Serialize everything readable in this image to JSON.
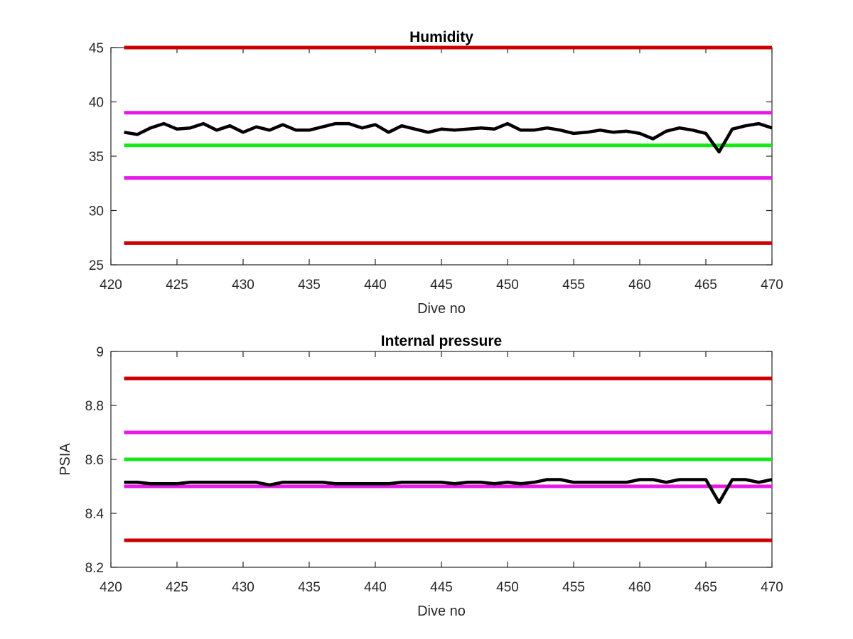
{
  "chart_data": [
    {
      "type": "line",
      "title": "Humidity",
      "xlabel": "Dive no",
      "ylabel": "",
      "xlim": [
        420,
        470
      ],
      "ylim": [
        25,
        45
      ],
      "xticks": [
        420,
        425,
        430,
        435,
        440,
        445,
        450,
        455,
        460,
        465,
        470
      ],
      "yticks": [
        25,
        30,
        35,
        40,
        45
      ],
      "grid": false,
      "thresholds": [
        {
          "value": 45,
          "x": [
            421,
            470
          ],
          "color": "#cc0000"
        },
        {
          "value": 39,
          "x": [
            421,
            470
          ],
          "color": "#e619e6"
        },
        {
          "value": 36,
          "x": [
            421,
            470
          ],
          "color": "#19e619"
        },
        {
          "value": 33,
          "x": [
            421,
            470
          ],
          "color": "#e619e6"
        },
        {
          "value": 27,
          "x": [
            421,
            470
          ],
          "color": "#cc0000"
        }
      ],
      "series": [
        {
          "color": "#000000",
          "x": [
            421,
            422,
            423,
            424,
            425,
            426,
            427,
            428,
            429,
            430,
            431,
            432,
            433,
            434,
            435,
            436,
            437,
            438,
            439,
            440,
            441,
            442,
            443,
            444,
            445,
            446,
            447,
            448,
            449,
            450,
            451,
            452,
            453,
            454,
            455,
            456,
            457,
            458,
            459,
            460,
            461,
            462,
            463,
            464,
            465,
            466,
            467,
            468,
            469,
            470
          ],
          "y": [
            37.2,
            37.0,
            37.6,
            38.0,
            37.5,
            37.6,
            38.0,
            37.4,
            37.8,
            37.2,
            37.7,
            37.4,
            37.9,
            37.4,
            37.4,
            37.7,
            38.0,
            38.0,
            37.6,
            37.9,
            37.2,
            37.8,
            37.5,
            37.2,
            37.5,
            37.4,
            37.5,
            37.6,
            37.5,
            38.0,
            37.4,
            37.4,
            37.6,
            37.4,
            37.1,
            37.2,
            37.4,
            37.2,
            37.3,
            37.1,
            36.6,
            37.3,
            37.6,
            37.4,
            37.1,
            35.4,
            37.5,
            37.8,
            38.0,
            37.6
          ]
        }
      ]
    },
    {
      "type": "line",
      "title": "Internal pressure",
      "xlabel": "Dive no",
      "ylabel": "PSIA",
      "xlim": [
        420,
        470
      ],
      "ylim": [
        8.2,
        9
      ],
      "xticks": [
        420,
        425,
        430,
        435,
        440,
        445,
        450,
        455,
        460,
        465,
        470
      ],
      "yticks": [
        8.2,
        8.4,
        8.6,
        8.8,
        9
      ],
      "ytick_labels": [
        "8.2",
        "8.4",
        "8.6",
        "8.8",
        "9"
      ],
      "grid": false,
      "thresholds": [
        {
          "value": 8.9,
          "x": [
            421,
            470
          ],
          "color": "#cc0000"
        },
        {
          "value": 8.7,
          "x": [
            421,
            470
          ],
          "color": "#e619e6"
        },
        {
          "value": 8.6,
          "x": [
            421,
            470
          ],
          "color": "#19e619"
        },
        {
          "value": 8.5,
          "x": [
            421,
            470
          ],
          "color": "#e619e6"
        },
        {
          "value": 8.3,
          "x": [
            421,
            470
          ],
          "color": "#cc0000"
        }
      ],
      "series": [
        {
          "color": "#000000",
          "x": [
            421,
            422,
            423,
            424,
            425,
            426,
            427,
            428,
            429,
            430,
            431,
            432,
            433,
            434,
            435,
            436,
            437,
            438,
            439,
            440,
            441,
            442,
            443,
            444,
            445,
            446,
            447,
            448,
            449,
            450,
            451,
            452,
            453,
            454,
            455,
            456,
            457,
            458,
            459,
            460,
            461,
            462,
            463,
            464,
            465,
            466,
            467,
            468,
            469,
            470
          ],
          "y": [
            8.515,
            8.515,
            8.51,
            8.51,
            8.51,
            8.515,
            8.515,
            8.515,
            8.515,
            8.515,
            8.515,
            8.505,
            8.515,
            8.515,
            8.515,
            8.515,
            8.51,
            8.51,
            8.51,
            8.51,
            8.51,
            8.515,
            8.515,
            8.515,
            8.515,
            8.51,
            8.515,
            8.515,
            8.51,
            8.515,
            8.51,
            8.515,
            8.525,
            8.525,
            8.515,
            8.515,
            8.515,
            8.515,
            8.515,
            8.525,
            8.525,
            8.515,
            8.525,
            8.525,
            8.525,
            8.44,
            8.525,
            8.525,
            8.515,
            8.525
          ]
        }
      ]
    }
  ]
}
